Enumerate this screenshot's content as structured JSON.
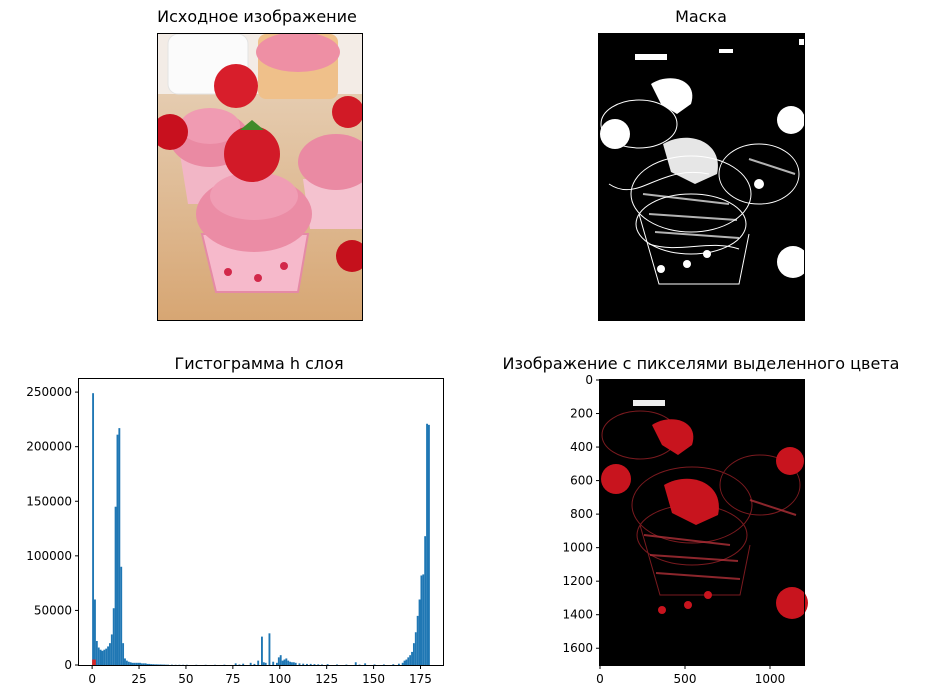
{
  "panels": {
    "original": {
      "title": "Исходное изображение"
    },
    "mask": {
      "title": "Маска"
    },
    "histogram": {
      "title": "Гистограмма h слоя"
    },
    "masked": {
      "title": "Изображение с пикселями выделенного цвета"
    }
  },
  "colors": {
    "bar": "#1f77b4",
    "highlight": "#d62728",
    "mask_white": "#ffffff",
    "mask_bg": "#000000",
    "masked_red": "#c8141e"
  },
  "chart_data": [
    {
      "type": "bar",
      "title": "Гистограмма h слоя",
      "xlabel": "",
      "ylabel": "",
      "xlim": [
        -7,
        187
      ],
      "ylim": [
        0,
        262000
      ],
      "xticks": [
        0,
        25,
        50,
        75,
        100,
        125,
        150,
        175
      ],
      "yticks": [
        0,
        50000,
        100000,
        150000,
        200000,
        250000
      ],
      "xtick_labels": [
        "0",
        "25",
        "50",
        "75",
        "100",
        "125",
        "150",
        "175"
      ],
      "ytick_labels": [
        "0",
        "50000",
        "100000",
        "150000",
        "200000",
        "250000"
      ],
      "bin_width": 1,
      "highlight_range": [
        0,
        1
      ],
      "x": [
        0,
        1,
        2,
        3,
        4,
        5,
        6,
        7,
        8,
        9,
        10,
        11,
        12,
        13,
        14,
        15,
        16,
        17,
        18,
        19,
        20,
        21,
        22,
        23,
        24,
        25,
        26,
        27,
        28,
        29,
        30,
        31,
        32,
        33,
        34,
        35,
        36,
        37,
        38,
        39,
        40,
        42,
        44,
        46,
        48,
        50,
        55,
        60,
        65,
        70,
        76,
        78,
        80,
        84,
        86,
        88,
        90,
        91,
        92,
        94,
        96,
        98,
        99,
        100,
        101,
        102,
        103,
        104,
        105,
        106,
        107,
        108,
        110,
        112,
        114,
        116,
        118,
        120,
        122,
        125,
        130,
        135,
        140,
        142,
        145,
        150,
        155,
        160,
        163,
        165,
        166,
        167,
        168,
        169,
        170,
        171,
        172,
        173,
        174,
        175,
        176,
        177,
        178,
        179
      ],
      "values": [
        249000,
        60000,
        22000,
        16000,
        14000,
        13000,
        14000,
        15000,
        17000,
        20000,
        28000,
        52000,
        145000,
        211000,
        217000,
        90000,
        20000,
        6000,
        4000,
        3000,
        2500,
        2000,
        2000,
        2000,
        2000,
        2000,
        1500,
        1500,
        1500,
        1000,
        1000,
        800,
        700,
        600,
        600,
        500,
        500,
        400,
        400,
        300,
        300,
        300,
        200,
        200,
        200,
        200,
        200,
        200,
        200,
        300,
        1500,
        500,
        1200,
        2000,
        1000,
        4000,
        26000,
        2500,
        2000,
        29000,
        3000,
        2000,
        7000,
        9000,
        4000,
        5000,
        6000,
        4000,
        3000,
        2500,
        2500,
        2000,
        1500,
        1200,
        1000,
        1000,
        800,
        600,
        500,
        800,
        500,
        400,
        2500,
        400,
        1500,
        500,
        500,
        700,
        1200,
        2000,
        4000,
        5000,
        7000,
        9000,
        12000,
        20000,
        30000,
        45000,
        60000,
        82000,
        83000,
        118000,
        221000,
        220000
      ]
    },
    {
      "type": "image",
      "title": "Изображение с пикселями выделенного цвета",
      "xlim": [
        0,
        1200
      ],
      "ylim": [
        1700,
        0
      ],
      "xticks": [
        0,
        500,
        1000
      ],
      "yticks": [
        0,
        200,
        400,
        600,
        800,
        1000,
        1200,
        1400,
        1600
      ],
      "xtick_labels": [
        "0",
        "500",
        "1000"
      ],
      "ytick_labels": [
        "0",
        "200",
        "400",
        "600",
        "800",
        "1000",
        "1200",
        "1400",
        "1600"
      ]
    }
  ]
}
